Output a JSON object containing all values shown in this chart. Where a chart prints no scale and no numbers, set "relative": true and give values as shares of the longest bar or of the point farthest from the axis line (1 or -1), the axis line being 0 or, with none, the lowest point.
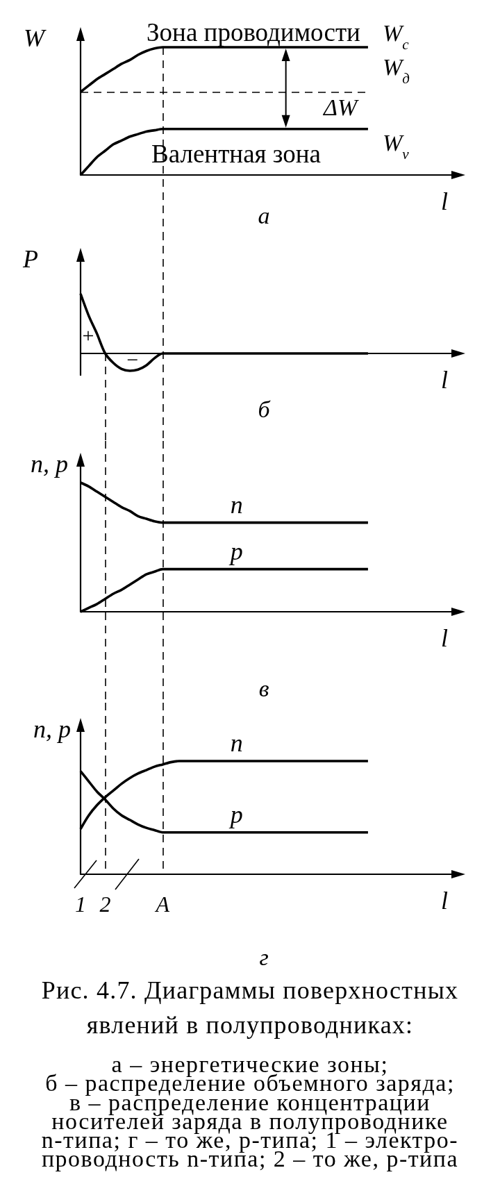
{
  "chart_data": [
    {
      "type": "line",
      "title": "а",
      "xlabel": "l",
      "ylabel": "W",
      "relative": true,
      "categories": [
        null,
        null,
        null,
        null,
        null,
        null,
        null,
        null,
        null,
        null,
        null,
        null,
        null,
        null,
        null,
        null,
        null,
        null,
        null,
        null,
        null,
        null,
        null,
        null,
        null,
        null,
        null,
        null,
        null,
        null,
        null,
        null,
        null,
        null,
        null,
        null,
        null,
        null,
        null,
        null,
        null,
        null,
        null,
        null,
        null,
        null,
        null
      ],
      "series": [
        {
          "name": "W$_{c}$",
          "color": "#000000",
          "values": [
            0.65,
            0.7,
            0.75,
            0.79,
            0.83,
            0.87,
            0.9,
            0.94,
            0.97,
            0.99,
            1,
            1,
            1,
            1,
            1,
            1,
            1,
            1,
            1,
            1,
            1,
            1,
            1,
            1,
            1,
            1,
            1,
            1,
            1,
            1,
            1,
            1,
            1,
            1,
            1,
            1,
            null,
            null,
            null,
            null,
            null,
            null,
            null,
            null,
            null,
            null,
            null
          ]
        },
        {
          "name": "W$_{v}$",
          "color": "#000000",
          "values": [
            0,
            0.07,
            0.14,
            0.19,
            0.24,
            0.27,
            0.3,
            0.32,
            0.34,
            0.35,
            0.36,
            0.36,
            0.36,
            0.36,
            0.36,
            0.36,
            0.36,
            0.36,
            0.36,
            0.36,
            0.36,
            0.36,
            0.36,
            0.36,
            0.36,
            0.36,
            0.36,
            0.36,
            0.36,
            0.36,
            0.36,
            0.36,
            0.36,
            0.36,
            0.36,
            0.36,
            null,
            null,
            null,
            null,
            null,
            null,
            null,
            null,
            null,
            null,
            null
          ]
        }
      ],
      "ref_lines": [
        {
          "axis": "y",
          "value": 0.65,
          "label": "W$_{д}$",
          "color": "#000000",
          "line_style": "dashed"
        }
      ],
      "annotations": [
        "Зона проводимости",
        "Валентная зона",
        "ΔW"
      ]
    },
    {
      "type": "line",
      "title": "б",
      "xlabel": "l",
      "ylabel": "P",
      "relative": true,
      "categories": [
        null,
        null,
        null,
        null,
        null,
        null,
        null,
        null,
        null,
        null,
        null,
        null,
        null,
        null,
        null,
        null,
        null,
        null,
        null,
        null,
        null,
        null,
        null,
        null,
        null,
        null,
        null,
        null,
        null,
        null,
        null,
        null,
        null,
        null,
        null,
        null,
        null,
        null,
        null,
        null,
        null,
        null,
        null,
        null,
        null,
        null,
        null
      ],
      "series": [
        {
          "color": "#000000",
          "values": [
            1,
            0.63,
            0.33,
            0,
            -0.16,
            -0.26,
            -0.29,
            -0.27,
            -0.2,
            -0.08,
            0,
            0,
            0,
            0,
            0,
            0,
            0,
            0,
            0,
            0,
            0,
            0,
            0,
            0,
            0,
            0,
            0,
            0,
            0,
            0,
            0,
            0,
            0,
            0,
            0,
            0,
            null,
            null,
            null,
            null,
            null,
            null,
            null,
            null,
            null,
            null,
            null
          ]
        }
      ],
      "annotations": [
        "+",
        "−"
      ]
    },
    {
      "type": "line",
      "title": "в",
      "xlabel": "l",
      "ylabel": "n, p",
      "relative": true,
      "categories": [
        null,
        null,
        null,
        null,
        null,
        null,
        null,
        null,
        null,
        null,
        null,
        null,
        null,
        null,
        null,
        null,
        null,
        null,
        null,
        null,
        null,
        null,
        null,
        null,
        null,
        null,
        null,
        null,
        null,
        null,
        null,
        null,
        null,
        null,
        null,
        null,
        null,
        null,
        null,
        null,
        null,
        null,
        null,
        null,
        null,
        null,
        null
      ],
      "series": [
        {
          "name": "n",
          "color": "#000000",
          "values": [
            1,
            0.97,
            0.93,
            0.89,
            0.85,
            0.81,
            0.78,
            0.74,
            0.72,
            0.7,
            0.69,
            0.69,
            0.69,
            0.69,
            0.69,
            0.69,
            0.69,
            0.69,
            0.69,
            0.69,
            0.69,
            0.69,
            0.69,
            0.69,
            0.69,
            0.69,
            0.69,
            0.69,
            0.69,
            0.69,
            0.69,
            0.69,
            0.69,
            0.69,
            0.69,
            0.69,
            null,
            null,
            null,
            null,
            null,
            null,
            null,
            null,
            null,
            null,
            null
          ]
        },
        {
          "name": "p",
          "color": "#000000",
          "values": [
            0,
            0.03,
            0.06,
            0.1,
            0.14,
            0.17,
            0.21,
            0.25,
            0.29,
            0.31,
            0.33,
            0.33,
            0.33,
            0.33,
            0.33,
            0.33,
            0.33,
            0.33,
            0.33,
            0.33,
            0.33,
            0.33,
            0.33,
            0.33,
            0.33,
            0.33,
            0.33,
            0.33,
            0.33,
            0.33,
            0.33,
            0.33,
            0.33,
            0.33,
            0.33,
            0.33,
            null,
            null,
            null,
            null,
            null,
            null,
            null,
            null,
            null,
            null,
            null
          ]
        }
      ]
    },
    {
      "type": "line",
      "title": "г",
      "xlabel": "l",
      "ylabel": "n, p",
      "relative": true,
      "tick_labels": "x",
      "categories": [
        "1",
        null,
        null,
        "2",
        null,
        null,
        null,
        null,
        null,
        null,
        "A",
        null,
        null,
        null,
        null,
        null,
        null,
        null,
        null,
        null,
        null,
        null,
        null,
        null,
        null,
        null,
        null,
        null,
        null,
        null,
        null,
        null,
        null,
        null,
        null,
        null,
        null,
        null,
        null,
        null,
        null,
        null,
        null,
        null,
        null,
        null,
        null
      ],
      "series": [
        {
          "name": "n",
          "color": "#000000",
          "values": [
            0.4,
            0.52,
            0.61,
            0.68,
            0.74,
            0.8,
            0.85,
            0.89,
            0.92,
            0.95,
            0.97,
            0.99,
            1,
            1,
            1,
            1,
            1,
            1,
            1,
            1,
            1,
            1,
            1,
            1,
            1,
            1,
            1,
            1,
            1,
            1,
            1,
            1,
            1,
            1,
            1,
            1,
            null,
            null,
            null,
            null,
            null,
            null,
            null,
            null,
            null,
            null,
            null
          ]
        },
        {
          "name": "p",
          "color": "#000000",
          "values": [
            0.91,
            0.82,
            0.73,
            0.66,
            0.58,
            0.52,
            0.48,
            0.44,
            0.41,
            0.39,
            0.37,
            0.37,
            0.37,
            0.37,
            0.37,
            0.37,
            0.37,
            0.37,
            0.37,
            0.37,
            0.37,
            0.37,
            0.37,
            0.37,
            0.37,
            0.37,
            0.37,
            0.37,
            0.37,
            0.37,
            0.37,
            0.37,
            0.37,
            0.37,
            0.37,
            0.37,
            null,
            null,
            null,
            null,
            null,
            null,
            null,
            null,
            null,
            null,
            null
          ]
        }
      ],
      "ref_lines": [
        {
          "axis": "x",
          "value": "2",
          "color": "#000000",
          "line_style": "dashed"
        },
        {
          "axis": "x",
          "value": "A",
          "color": "#000000",
          "line_style": "dashed"
        }
      ]
    },
    {
      "type": "other",
      "title": "Рис. 4.7. Диаграммы поверхностных явлений в полупроводниках:",
      "annotations": [
        "а – энергетические зоны;",
        "б – распределение объемного заряда;",
        "в – распределение концентрации",
        "носителей заряда в полупроводнике",
        "n-типа; г – то же, p-типа; 1 – электро-",
        "проводность n-типа; 2 – то же, p-типа"
      ]
    }
  ]
}
